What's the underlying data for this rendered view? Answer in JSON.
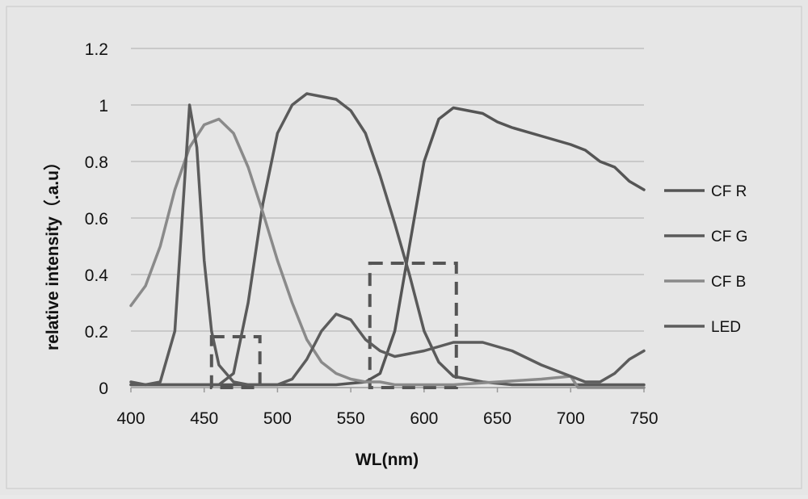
{
  "chart_data": {
    "type": "line",
    "title": "",
    "xlabel": "WL(nm)",
    "ylabel": "relative intensity（.a.u）",
    "xlim": [
      400,
      750
    ],
    "ylim": [
      0,
      1.2
    ],
    "x_ticks": [
      "400",
      "450",
      "500",
      "550",
      "600",
      "650",
      "700",
      "750"
    ],
    "y_ticks": [
      "0",
      "0.2",
      "0.4",
      "0.6",
      "0.8",
      "1",
      "1.2"
    ],
    "grid": "horizontal",
    "legend_position": "right",
    "colors": {
      "background": "#e6e6e6",
      "grid": "#b8b8b8",
      "axis": "#9a9a9a",
      "text": "#111111",
      "box": "#555555"
    },
    "series": [
      {
        "name": "CF R",
        "color": "#555555",
        "x": [
          400,
          420,
          450,
          480,
          500,
          540,
          560,
          570,
          580,
          590,
          600,
          610,
          620,
          640,
          650,
          660,
          680,
          700,
          710,
          720,
          730,
          740,
          750
        ],
        "y": [
          0.01,
          0.01,
          0.01,
          0.01,
          0.01,
          0.01,
          0.02,
          0.05,
          0.2,
          0.5,
          0.8,
          0.95,
          0.99,
          0.97,
          0.94,
          0.92,
          0.89,
          0.86,
          0.84,
          0.8,
          0.78,
          0.73,
          0.7
        ]
      },
      {
        "name": "CF G",
        "color": "#5a5a5a",
        "x": [
          400,
          460,
          470,
          480,
          490,
          500,
          510,
          515,
          520,
          530,
          540,
          550,
          560,
          570,
          580,
          590,
          600,
          610,
          620,
          640,
          660,
          680,
          700,
          720,
          750
        ],
        "y": [
          0.01,
          0.01,
          0.05,
          0.3,
          0.65,
          0.9,
          1.0,
          1.02,
          1.04,
          1.03,
          1.02,
          0.98,
          0.9,
          0.75,
          0.58,
          0.4,
          0.2,
          0.09,
          0.04,
          0.02,
          0.01,
          0.01,
          0.01,
          0.01,
          0.01
        ]
      },
      {
        "name": "CF B",
        "color": "#8a8a8a",
        "x": [
          400,
          410,
          420,
          430,
          440,
          450,
          460,
          470,
          480,
          490,
          500,
          510,
          520,
          530,
          540,
          550,
          560,
          570,
          580,
          600,
          620,
          650,
          680,
          700,
          705,
          720,
          750
        ],
        "y": [
          0.29,
          0.36,
          0.5,
          0.7,
          0.85,
          0.93,
          0.95,
          0.9,
          0.78,
          0.62,
          0.45,
          0.3,
          0.17,
          0.09,
          0.05,
          0.03,
          0.02,
          0.02,
          0.01,
          0.01,
          0.01,
          0.02,
          0.03,
          0.04,
          0.0,
          0.0,
          0.0
        ]
      },
      {
        "name": "LED",
        "color": "#5c5c5c",
        "x": [
          400,
          410,
          420,
          430,
          435,
          440,
          445,
          450,
          455,
          460,
          470,
          480,
          500,
          510,
          520,
          530,
          540,
          550,
          560,
          570,
          580,
          600,
          620,
          640,
          660,
          680,
          700,
          710,
          720,
          730,
          740,
          750
        ],
        "y": [
          0.02,
          0.01,
          0.02,
          0.2,
          0.6,
          1.0,
          0.85,
          0.45,
          0.2,
          0.08,
          0.02,
          0.01,
          0.01,
          0.03,
          0.1,
          0.2,
          0.26,
          0.24,
          0.17,
          0.13,
          0.11,
          0.13,
          0.16,
          0.16,
          0.13,
          0.08,
          0.04,
          0.02,
          0.02,
          0.05,
          0.1,
          0.13
        ]
      }
    ],
    "annotations": [
      {
        "type": "dashed-box",
        "x": [
          455,
          488
        ],
        "y": [
          0,
          0.18
        ]
      },
      {
        "type": "dashed-box",
        "x": [
          563,
          622
        ],
        "y": [
          0,
          0.44
        ]
      }
    ]
  }
}
